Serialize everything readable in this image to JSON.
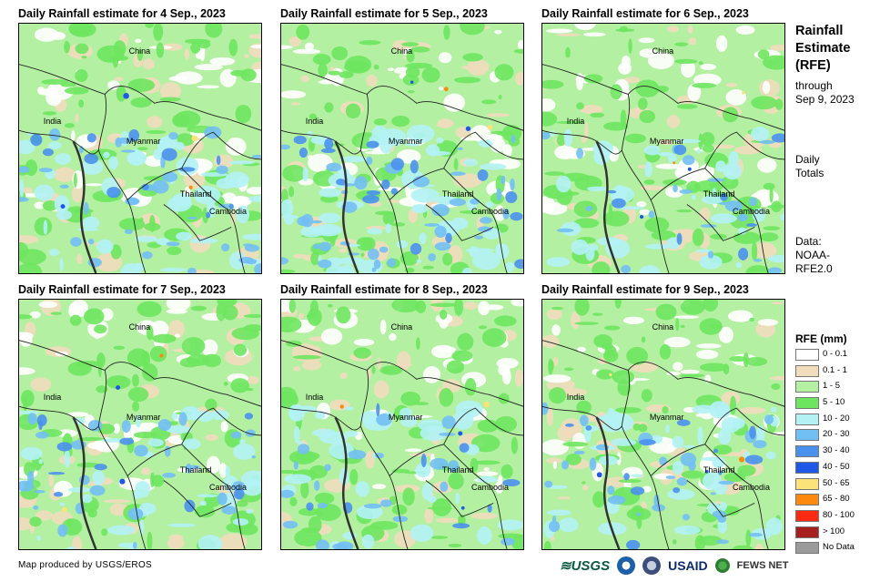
{
  "panels": [
    {
      "title": "Daily Rainfall estimate for 4 Sep., 2023"
    },
    {
      "title": "Daily Rainfall estimate for 5 Sep., 2023"
    },
    {
      "title": "Daily Rainfall estimate for 6 Sep., 2023"
    },
    {
      "title": "Daily Rainfall estimate for 7 Sep., 2023"
    },
    {
      "title": "Daily Rainfall estimate for 8 Sep., 2023"
    },
    {
      "title": "Daily Rainfall estimate for 9 Sep., 2023"
    }
  ],
  "map_labels": {
    "china": "China",
    "india": "India",
    "myanmar": "Myanmar",
    "thailand": "Thailand",
    "cambodia": "Cambodia"
  },
  "side": {
    "title_line1": "Rainfall",
    "title_line2": "Estimate",
    "title_line3": "(RFE)",
    "through_line1": "through",
    "through_line2": "Sep 9, 2023",
    "daily_line1": "Daily",
    "daily_line2": "Totals",
    "data_line1": "Data:",
    "data_line2": "NOAA-",
    "data_line3": "RFE2.0"
  },
  "legend": {
    "title": "RFE (mm)",
    "items": [
      {
        "label": "0 - 0.1",
        "color": "#ffffff"
      },
      {
        "label": "0.1 - 1",
        "color": "#f1dcbc"
      },
      {
        "label": "1 - 5",
        "color": "#b4f0a2"
      },
      {
        "label": "5 - 10",
        "color": "#6ee55f"
      },
      {
        "label": "10 - 20",
        "color": "#b2f2f5"
      },
      {
        "label": "20 - 30",
        "color": "#72bff4"
      },
      {
        "label": "30 - 40",
        "color": "#4a91ee"
      },
      {
        "label": "40 - 50",
        "color": "#1f58e6"
      },
      {
        "label": "50 - 65",
        "color": "#fbe37a"
      },
      {
        "label": "65 - 80",
        "color": "#fb8a0e"
      },
      {
        "label": "80 - 100",
        "color": "#fb2a10"
      },
      {
        "label": "> 100",
        "color": "#a81f1f"
      },
      {
        "label": "No Data",
        "color": "#9b9b9b"
      }
    ]
  },
  "credit": "Map produced by USGS/EROS",
  "logos": {
    "usgs": "≋USGS",
    "usaid": "USAID",
    "fews": "FEWS NET"
  }
}
